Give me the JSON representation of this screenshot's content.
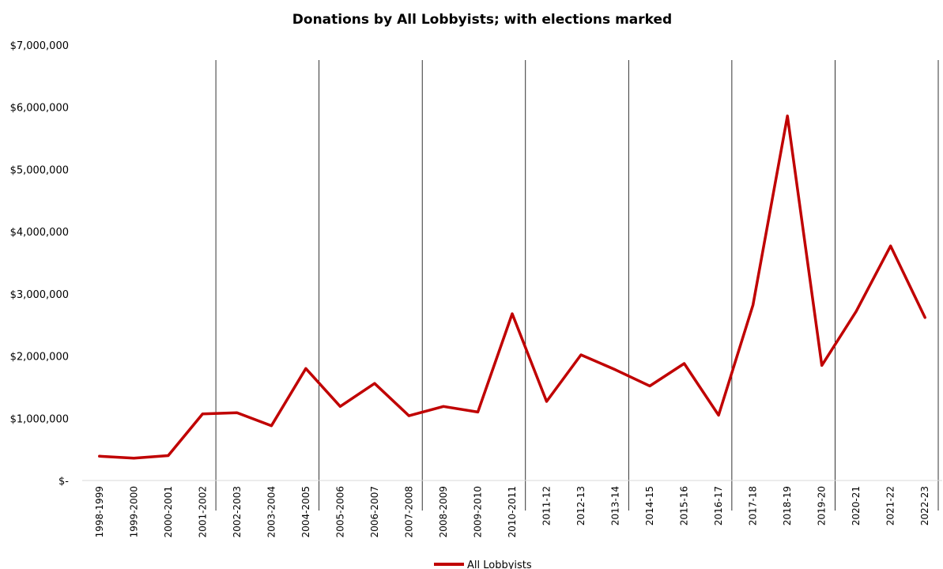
{
  "chart_data": {
    "type": "line",
    "title": "Donations by All Lobbyists; with elections marked",
    "xlabel": "",
    "ylabel": "",
    "categories": [
      "1998-1999",
      "1999-2000",
      "2000-2001",
      "2001-2002",
      "2002-2003",
      "2003-2004",
      "2004-2005",
      "2005-2006",
      "2006-2007",
      "2007-2008",
      "2008-2009",
      "2009-2010",
      "2010-2011",
      "2011-12",
      "2012-13",
      "2013-14",
      "2014-15",
      "2015-16",
      "2016-17",
      "2017-18",
      "2018-19",
      "2019-20",
      "2020-21",
      "2021-22",
      "2022-23"
    ],
    "series": [
      {
        "name": "All Lobbyists",
        "color": "#c00000",
        "values": [
          390000,
          360000,
          400000,
          1070000,
          1090000,
          880000,
          1800000,
          1190000,
          1560000,
          1040000,
          1190000,
          1100000,
          2680000,
          1270000,
          2020000,
          1780000,
          1520000,
          1880000,
          1050000,
          2820000,
          5860000,
          1850000,
          2720000,
          3770000,
          2620000
        ]
      }
    ],
    "ylim": [
      0,
      7000000
    ],
    "yticks": [
      0,
      1000000,
      2000000,
      3000000,
      4000000,
      5000000,
      6000000,
      7000000
    ],
    "ytick_labels": [
      "$-",
      "$1,000,000",
      "$2,000,000",
      "$3,000,000",
      "$4,000,000",
      "$5,000,000",
      "$6,000,000",
      "$7,000,000"
    ],
    "election_markers": [
      "2001-2002",
      "2004-2005",
      "2007-2008",
      "2010-2011",
      "2013-14",
      "2016-17",
      "2019-20",
      "2022-23"
    ],
    "election_marker_color": "#000000",
    "grid": false,
    "legend_position": "bottom"
  }
}
